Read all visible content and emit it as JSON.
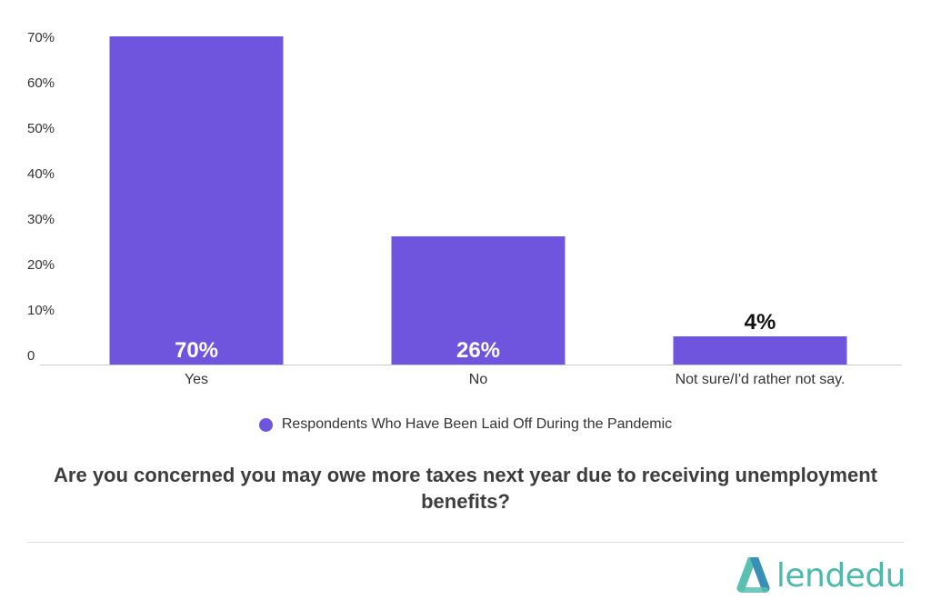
{
  "chart_data": {
    "type": "bar",
    "categories": [
      "Yes",
      "No",
      "Not sure/I'd rather not say."
    ],
    "series": [
      {
        "name": "Respondents Who Have Been Laid Off During the Pandemic",
        "values": [
          70,
          26,
          4
        ],
        "color": "#6F55DE"
      }
    ],
    "data_labels": [
      "70%",
      "26%",
      "4%"
    ],
    "ylim": [
      0,
      70
    ],
    "y_ticks": [
      0,
      10,
      20,
      30,
      40,
      50,
      60,
      70
    ],
    "y_tick_labels": [
      "0",
      "10%",
      "20%",
      "30%",
      "40%",
      "50%",
      "60%",
      "70%"
    ],
    "title": "Are you concerned you may owe more taxes next year due to receiving unemployment benefits?",
    "xlabel": "",
    "ylabel": "",
    "grid": false,
    "legend_position": "bottom"
  },
  "brand": {
    "name": "lendedu",
    "color": "#4FB8AC",
    "mark_color_left": "#5AC0B0",
    "mark_color_right": "#3A8FB7"
  },
  "colors": {
    "bar": "#6F55DE",
    "axis_text": "#333333",
    "baseline": "#cccccc"
  }
}
